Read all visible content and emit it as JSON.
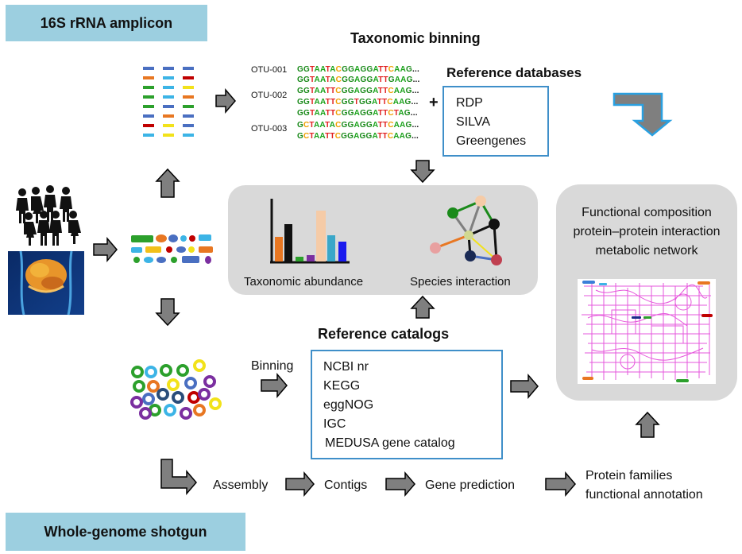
{
  "banners": {
    "amplicon": "16S rRNA amplicon",
    "shotgun": "Whole-genome shotgun"
  },
  "taxonomic_binning": {
    "title": "Taxonomic binning",
    "otus": [
      {
        "label": "OTU-001",
        "seqs": [
          "GGTAATACGGAGGATTCAAG...",
          "GGTAATACGGAGGATTGAAG..."
        ]
      },
      {
        "label": "OTU-002",
        "seqs": [
          "GGTAATTCGGAGGATTCAAG...",
          "GGTAATTCGGTGGATTCAAG...",
          "GGTAATTCGGAGGATTCTAG..."
        ]
      },
      {
        "label": "OTU-003",
        "seqs": [
          "GCTAATACGGAGGATTCAAG...",
          "GCTAATTCGGAGGATTCAAG..."
        ]
      }
    ],
    "plus": "+"
  },
  "reference_databases": {
    "title": "Reference databases",
    "items": [
      "RDP",
      "SILVA",
      "Greengenes"
    ]
  },
  "results_panel": {
    "abundance_label": "Taxonomic abundance",
    "interaction_label": "Species interaction"
  },
  "functional_panel": {
    "lines": [
      "Functional composition",
      "protein–protein interaction",
      "metabolic network"
    ]
  },
  "reference_catalogs": {
    "title": "Reference catalogs",
    "items": [
      "NCBI nr",
      "KEGG",
      "eggNOG",
      "IGC",
      "MEDUSA gene catalog"
    ]
  },
  "workflow": {
    "binning": "Binning",
    "assembly": "Assembly",
    "contigs": "Contigs",
    "gene_prediction": "Gene prediction",
    "protein_families": [
      "Protein families",
      "functional annotation"
    ]
  },
  "colors": {
    "banner": "#9ccfe0",
    "panel": "#d9d9d9",
    "box_border": "#3f8fc9",
    "arrow_fill": "#7f7f7f"
  }
}
